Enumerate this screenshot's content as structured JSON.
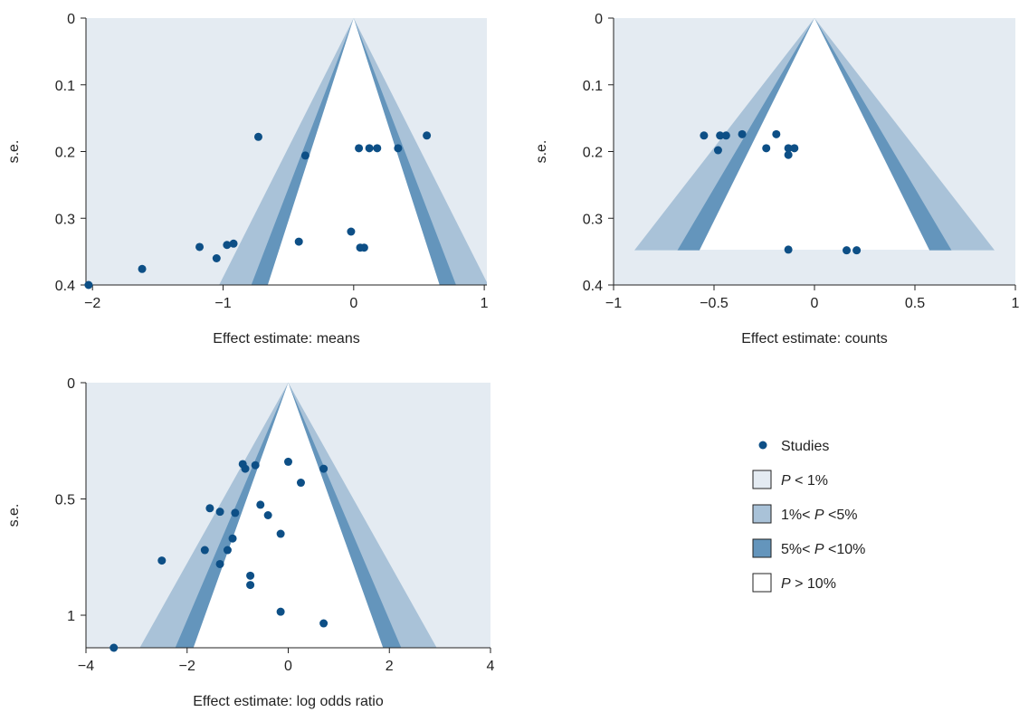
{
  "colors": {
    "p_lt_1": "#e4ebf2",
    "p_1_5": "#a9c2d8",
    "p_5_10": "#6495bc",
    "p_gt_10": "#ffffff",
    "point": "#0d4f86",
    "axis": "#222222"
  },
  "legend": {
    "studies": "Studies",
    "items": [
      {
        "pre": "",
        "p": "P",
        "post": " < 1%",
        "color_key": "p_lt_1"
      },
      {
        "pre": "1%< ",
        "p": "P",
        "post": " <5%",
        "color_key": "p_1_5"
      },
      {
        "pre": "5%< ",
        "p": "P",
        "post": " <10%",
        "color_key": "p_5_10"
      },
      {
        "pre": "",
        "p": "P",
        "post": " > 10%",
        "color_key": "p_gt_10"
      }
    ]
  },
  "chart_data": [
    {
      "type": "scatter",
      "subtype": "contour-enhanced funnel plot",
      "xlabel": "Effect estimate: means",
      "ylabel": "s.e.",
      "xlim": [
        -2.05,
        1.02
      ],
      "ylim": [
        0,
        0.4
      ],
      "y_reversed": true,
      "xticks": [
        -2,
        -1,
        0,
        1
      ],
      "yticks": [
        0,
        0.1,
        0.2,
        0.3,
        0.4
      ],
      "ytick_labels": [
        "0",
        "0.1",
        "0.2",
        "0.3",
        "0.4"
      ],
      "contour_z": [
        1.645,
        1.96,
        2.576
      ],
      "points": [
        {
          "x": -0.73,
          "y": 0.178
        },
        {
          "x": -0.37,
          "y": 0.206
        },
        {
          "x": 0.04,
          "y": 0.195
        },
        {
          "x": 0.12,
          "y": 0.195
        },
        {
          "x": 0.18,
          "y": 0.195
        },
        {
          "x": 0.34,
          "y": 0.195
        },
        {
          "x": 0.56,
          "y": 0.176
        },
        {
          "x": -0.02,
          "y": 0.32
        },
        {
          "x": -0.42,
          "y": 0.335
        },
        {
          "x": 0.05,
          "y": 0.344
        },
        {
          "x": 0.08,
          "y": 0.344
        },
        {
          "x": -0.92,
          "y": 0.338
        },
        {
          "x": -0.97,
          "y": 0.34
        },
        {
          "x": -1.18,
          "y": 0.343
        },
        {
          "x": -1.05,
          "y": 0.36
        },
        {
          "x": -1.62,
          "y": 0.376
        },
        {
          "x": -2.03,
          "y": 0.4
        }
      ]
    },
    {
      "type": "scatter",
      "subtype": "contour-enhanced funnel plot",
      "xlabel": "Effect estimate: counts",
      "ylabel": "s.e.",
      "xlim": [
        -1,
        1
      ],
      "ylim": [
        0,
        0.4
      ],
      "y_reversed": true,
      "contour_ymax": 0.348,
      "xticks": [
        -1,
        -0.5,
        0,
        0.5,
        1
      ],
      "xtick_labels": [
        "−1",
        "−0.5",
        "0",
        "0.5",
        "1"
      ],
      "yticks": [
        0,
        0.1,
        0.2,
        0.3,
        0.4
      ],
      "ytick_labels": [
        "0",
        "0.1",
        "0.2",
        "0.3",
        "0.4"
      ],
      "contour_z": [
        1.645,
        1.96,
        2.576
      ],
      "points": [
        {
          "x": -0.55,
          "y": 0.176
        },
        {
          "x": -0.47,
          "y": 0.176
        },
        {
          "x": -0.44,
          "y": 0.176
        },
        {
          "x": -0.36,
          "y": 0.174
        },
        {
          "x": -0.19,
          "y": 0.174
        },
        {
          "x": -0.48,
          "y": 0.198
        },
        {
          "x": -0.24,
          "y": 0.195
        },
        {
          "x": -0.13,
          "y": 0.195
        },
        {
          "x": -0.1,
          "y": 0.195
        },
        {
          "x": -0.13,
          "y": 0.205
        },
        {
          "x": -0.13,
          "y": 0.347
        },
        {
          "x": 0.16,
          "y": 0.348
        },
        {
          "x": 0.21,
          "y": 0.348
        }
      ]
    },
    {
      "type": "scatter",
      "subtype": "contour-enhanced funnel plot",
      "xlabel": "Effect estimate: log odds ratio",
      "ylabel": "s.e.",
      "xlim": [
        -4,
        4
      ],
      "ylim": [
        0,
        1.14
      ],
      "y_reversed": true,
      "xticks": [
        -4,
        -2,
        0,
        2,
        4
      ],
      "xtick_labels": [
        "−4",
        "−2",
        "0",
        "2",
        "4"
      ],
      "yticks": [
        0,
        0.5,
        1
      ],
      "ytick_labels": [
        "0",
        "0.5",
        "1"
      ],
      "contour_z": [
        1.645,
        1.96,
        2.576
      ],
      "points": [
        {
          "x": -0.9,
          "y": 0.35
        },
        {
          "x": -0.85,
          "y": 0.37
        },
        {
          "x": -0.65,
          "y": 0.355
        },
        {
          "x": 0.0,
          "y": 0.34
        },
        {
          "x": 0.7,
          "y": 0.37
        },
        {
          "x": 0.25,
          "y": 0.43
        },
        {
          "x": -1.55,
          "y": 0.54
        },
        {
          "x": -1.35,
          "y": 0.555
        },
        {
          "x": -1.05,
          "y": 0.56
        },
        {
          "x": -0.55,
          "y": 0.525
        },
        {
          "x": -0.4,
          "y": 0.57
        },
        {
          "x": -0.15,
          "y": 0.65
        },
        {
          "x": -1.1,
          "y": 0.67
        },
        {
          "x": -1.2,
          "y": 0.72
        },
        {
          "x": -1.65,
          "y": 0.72
        },
        {
          "x": -2.5,
          "y": 0.765
        },
        {
          "x": -1.35,
          "y": 0.78
        },
        {
          "x": -0.75,
          "y": 0.83
        },
        {
          "x": -0.75,
          "y": 0.87
        },
        {
          "x": -0.15,
          "y": 0.985
        },
        {
          "x": 0.7,
          "y": 1.035
        },
        {
          "x": -3.45,
          "y": 1.14
        }
      ]
    }
  ]
}
